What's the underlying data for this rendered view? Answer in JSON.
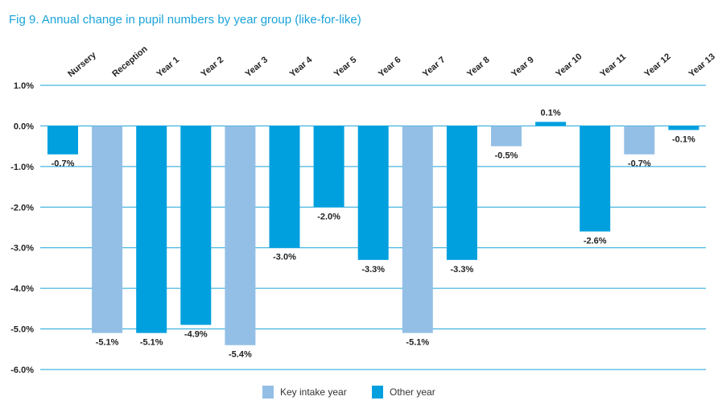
{
  "title": "Fig 9. Annual change in pupil numbers by year group (like-for-like)",
  "colors": {
    "key_intake": "#93bfe6",
    "other": "#00a0df",
    "grid": "#1aa3d9",
    "text": "#222222",
    "title": "#1aa3d9"
  },
  "chart_data": {
    "type": "bar",
    "title": "Fig 9. Annual change in pupil numbers by year group (like-for-like)",
    "xlabel": "",
    "ylabel": "",
    "categories": [
      "Nursery",
      "Reception",
      "Year 1",
      "Year 2",
      "Year 3",
      "Year 4",
      "Year 5",
      "Year 6",
      "Year 7",
      "Year 8",
      "Year 9",
      "Year 10",
      "Year 11",
      "Year 12",
      "Year 13"
    ],
    "values": [
      -0.7,
      -5.1,
      -5.1,
      -4.9,
      -5.4,
      -3.0,
      -2.0,
      -3.3,
      -5.1,
      -3.3,
      -0.5,
      0.1,
      -2.6,
      -0.7,
      -0.1
    ],
    "value_labels": [
      "-0.7%",
      "-5.1%",
      "-5.1%",
      "-4.9%",
      "-5.4%",
      "-3.0%",
      "-2.0%",
      "-3.3%",
      "-5.1%",
      "-3.3%",
      "-0.5%",
      "0.1%",
      "-2.6%",
      "-0.7%",
      "-0.1%"
    ],
    "bar_groups": [
      "other",
      "key",
      "other",
      "other",
      "key",
      "other",
      "other",
      "other",
      "key",
      "other",
      "key",
      "other",
      "other",
      "key",
      "other"
    ],
    "ylim": [
      -6.0,
      1.0
    ],
    "yticks": [
      1.0,
      0.0,
      -1.0,
      -2.0,
      -3.0,
      -4.0,
      -5.0,
      -6.0
    ],
    "ytick_labels": [
      "1.0%",
      "0.0%",
      "-1.0%",
      "-2.0%",
      "-3.0%",
      "-4.0%",
      "-5.0%",
      "-6.0%"
    ],
    "grid": true,
    "legend_position": "bottom-center",
    "legend": [
      {
        "label": "Key intake year",
        "group": "key"
      },
      {
        "label": "Other year",
        "group": "other"
      }
    ]
  }
}
